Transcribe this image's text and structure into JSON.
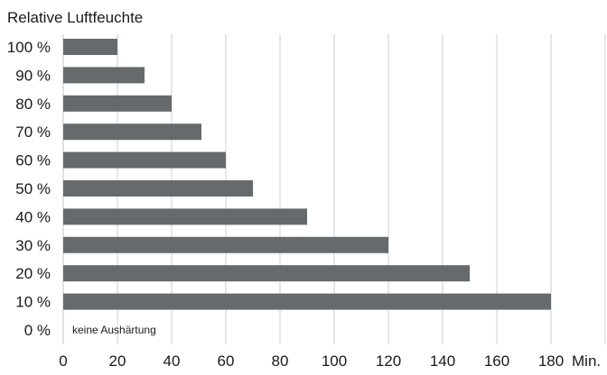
{
  "chart_data": {
    "type": "bar",
    "orientation": "horizontal",
    "ylabel": "Relative Luftfeuchte",
    "xlabel": "",
    "x_unit": "Min.",
    "categories": [
      "100 %",
      "90 %",
      "80 %",
      "70 %",
      "60 %",
      "50 %",
      "40 %",
      "30 %",
      "20 %",
      "10 %",
      "0 %"
    ],
    "values": [
      20,
      30,
      40,
      51,
      60,
      70,
      90,
      120,
      150,
      180,
      0
    ],
    "xlim": [
      0,
      200
    ],
    "x_ticks": [
      "0",
      "20",
      "40",
      "60",
      "80",
      "100",
      "120",
      "140",
      "160",
      "180"
    ],
    "annotation": "keine Aushärtung",
    "grid": "vertical",
    "bar_color": "#666a6d",
    "grid_color": "#cfcfcf"
  }
}
